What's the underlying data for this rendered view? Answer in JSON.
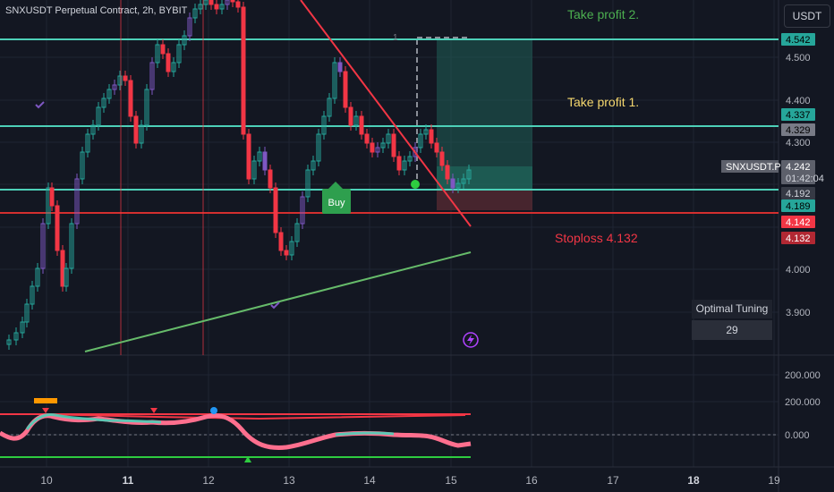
{
  "header": {
    "title": "SNXUSDT Perpetual Contract, 2h, BYBIT",
    "currency": "USDT"
  },
  "annotations": {
    "take_profit_2": "Take profit 2.",
    "take_profit_1": "Take profit 1.",
    "stoploss": "Stoploss 4.132",
    "buy": "Buy",
    "position_top_label": "1"
  },
  "optimal_tuning": {
    "label": "Optimal Tuning",
    "value": "29"
  },
  "price_axis": {
    "ticks": [
      "4.500",
      "4.400",
      "4.300",
      "4.000",
      "3.900"
    ],
    "tags": [
      {
        "value": "4.542",
        "bg": "#26a69a",
        "fg": "#000000"
      },
      {
        "value": "4.337",
        "bg": "#26a69a",
        "fg": "#000000"
      },
      {
        "value": "4.329",
        "bg": "#787b86",
        "fg": "#000000"
      },
      {
        "value": "4.242",
        "bg": "#5d606b",
        "fg": "#ffffff"
      },
      {
        "value": "01:42:04",
        "bg": "#5d606b",
        "fg": "#d1d4dc"
      },
      {
        "value": "4.192",
        "bg": "#363a45",
        "fg": "#d1d4dc"
      },
      {
        "value": "4.189",
        "bg": "#26a69a",
        "fg": "#000000"
      },
      {
        "value": "4.142",
        "bg": "#f23645",
        "fg": "#ffffff"
      },
      {
        "value": "4.132",
        "bg": "#b22833",
        "fg": "#ffffff"
      }
    ],
    "symbol_tag": "SNXUSDT.P"
  },
  "indicator_axis": {
    "ticks": [
      "200.000",
      "200.000",
      "0.000"
    ]
  },
  "time_axis": {
    "labels": [
      "10",
      "11",
      "12",
      "13",
      "14",
      "15",
      "16",
      "17",
      "18",
      "19"
    ],
    "bold": [
      "11",
      "18"
    ]
  },
  "colors": {
    "background": "#131722",
    "up": "#26a69a",
    "down": "#f23645",
    "alt": "#7e57c2",
    "level_line": "#4dd0b8",
    "stop_line": "#d32f2f",
    "trend_down": "#f23645",
    "trend_up": "#4caf50",
    "tp2_text": "#4caf50",
    "tp1_text": "#f5d76e",
    "stop_text": "#f23645"
  },
  "icons": [
    "lightning-icon",
    "check-icon",
    "triangle-down-icon",
    "triangle-up-icon"
  ]
}
